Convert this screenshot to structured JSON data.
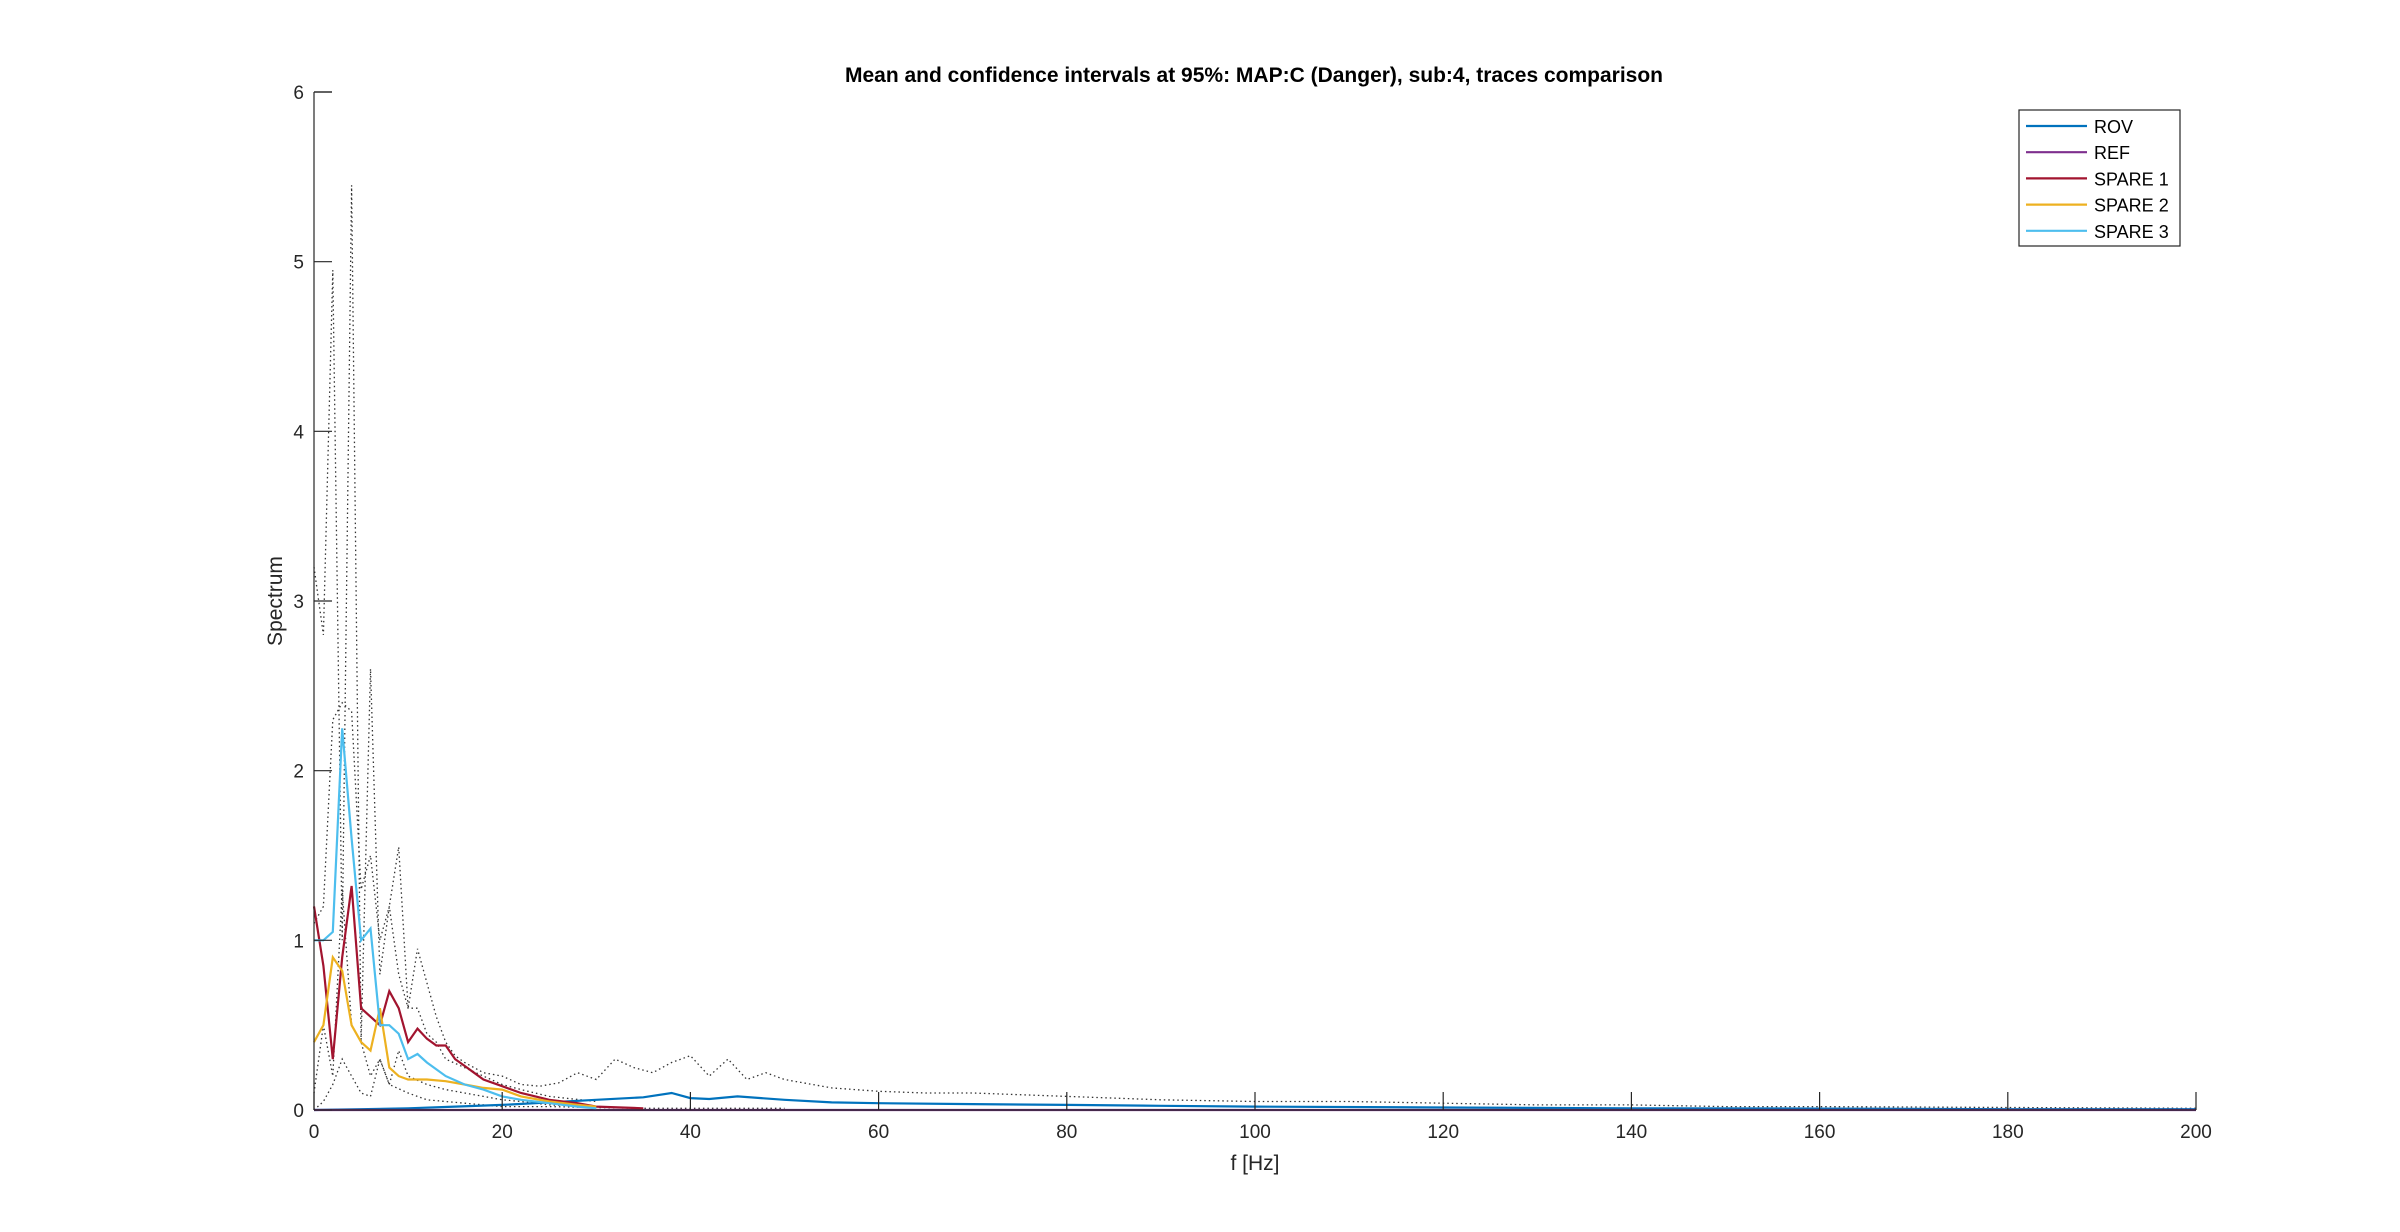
{
  "chart_data": {
    "type": "line",
    "title": "Mean and confidence intervals at 95%: MAP:C (Danger), sub:4, traces comparison",
    "xlabel": "f [Hz]",
    "ylabel": "Spectrum",
    "xlim": [
      0,
      200
    ],
    "ylim": [
      0,
      6
    ],
    "xticks": [
      0,
      20,
      40,
      60,
      80,
      100,
      120,
      140,
      160,
      180,
      200
    ],
    "yticks": [
      0,
      1,
      2,
      3,
      4,
      5,
      6
    ],
    "grid": false,
    "legend_position": "top-right",
    "series": [
      {
        "name": "ROV",
        "color": "#0072BD",
        "x": [
          0,
          5,
          10,
          15,
          20,
          25,
          30,
          35,
          38,
          40,
          42,
          45,
          50,
          55,
          60,
          70,
          80,
          90,
          100,
          120,
          140,
          160,
          180,
          200
        ],
        "y": [
          0.0,
          0.005,
          0.01,
          0.02,
          0.03,
          0.045,
          0.06,
          0.075,
          0.1,
          0.07,
          0.065,
          0.08,
          0.06,
          0.045,
          0.04,
          0.035,
          0.03,
          0.025,
          0.02,
          0.015,
          0.01,
          0.008,
          0.005,
          0.005
        ]
      },
      {
        "name": "REF",
        "color": "#7E2F8E",
        "x": [
          0,
          5,
          10,
          20,
          30,
          50,
          100,
          200
        ],
        "y": [
          0.0,
          0.0,
          0.0,
          0.0,
          0.0,
          0.0,
          0.0,
          0.0
        ]
      },
      {
        "name": "SPARE 1",
        "color": "#A2142F",
        "x": [
          0,
          1,
          2,
          3,
          4,
          5,
          6,
          7,
          8,
          9,
          10,
          11,
          12,
          13,
          14,
          15,
          16,
          17,
          18,
          20,
          22,
          25,
          28,
          30,
          35
        ],
        "y": [
          1.2,
          0.85,
          0.3,
          0.9,
          1.32,
          0.6,
          0.55,
          0.5,
          0.7,
          0.6,
          0.4,
          0.48,
          0.42,
          0.38,
          0.38,
          0.3,
          0.26,
          0.22,
          0.18,
          0.14,
          0.1,
          0.06,
          0.04,
          0.02,
          0.01
        ]
      },
      {
        "name": "SPARE 2",
        "color": "#EDB120",
        "x": [
          0,
          1,
          2,
          3,
          4,
          5,
          6,
          7,
          8,
          9,
          10,
          12,
          14,
          16,
          18,
          20,
          22,
          25,
          28,
          30
        ],
        "y": [
          0.4,
          0.5,
          0.9,
          0.82,
          0.5,
          0.4,
          0.35,
          0.6,
          0.25,
          0.2,
          0.18,
          0.18,
          0.17,
          0.15,
          0.13,
          0.12,
          0.08,
          0.05,
          0.03,
          0.02
        ]
      },
      {
        "name": "SPARE 3",
        "color": "#4DBEEE",
        "x": [
          0,
          1,
          2,
          3,
          4,
          5,
          6,
          7,
          8,
          9,
          10,
          11,
          12,
          14,
          16,
          18,
          20,
          22,
          25,
          28,
          30
        ],
        "y": [
          1.0,
          1.0,
          1.05,
          2.25,
          1.6,
          1.0,
          1.07,
          0.5,
          0.5,
          0.45,
          0.3,
          0.33,
          0.28,
          0.2,
          0.15,
          0.12,
          0.08,
          0.06,
          0.04,
          0.02,
          0.01
        ]
      }
    ],
    "confidence_bounds": [
      {
        "style": "dotted",
        "x": [
          0,
          1,
          2,
          3,
          4,
          5,
          6,
          7,
          8,
          9,
          10,
          11,
          12,
          13,
          14,
          15,
          16,
          18,
          20,
          22,
          24,
          26,
          28,
          30,
          32,
          34,
          36,
          38,
          40,
          42,
          44,
          46,
          48,
          50,
          55,
          60,
          65,
          70,
          80,
          90,
          100,
          110,
          120,
          130,
          140,
          150,
          160,
          180,
          200
        ],
        "y": [
          3.2,
          2.8,
          4.95,
          1.0,
          5.45,
          0.4,
          2.6,
          0.8,
          1.2,
          1.55,
          0.6,
          0.95,
          0.75,
          0.55,
          0.4,
          0.32,
          0.28,
          0.22,
          0.2,
          0.15,
          0.14,
          0.16,
          0.22,
          0.18,
          0.3,
          0.25,
          0.22,
          0.28,
          0.32,
          0.2,
          0.3,
          0.18,
          0.22,
          0.18,
          0.13,
          0.11,
          0.1,
          0.1,
          0.08,
          0.06,
          0.05,
          0.05,
          0.04,
          0.03,
          0.03,
          0.02,
          0.02,
          0.015,
          0.01
        ]
      },
      {
        "style": "dotted",
        "x": [
          0,
          1,
          2,
          3,
          4,
          5,
          6,
          7,
          8,
          9,
          10,
          11,
          12,
          13,
          14,
          16,
          18,
          20,
          22,
          25,
          30
        ],
        "y": [
          1.1,
          1.2,
          2.3,
          2.4,
          2.35,
          1.3,
          1.5,
          1.0,
          1.2,
          0.8,
          0.6,
          0.6,
          0.45,
          0.4,
          0.3,
          0.25,
          0.2,
          0.15,
          0.12,
          0.08,
          0.05
        ]
      },
      {
        "style": "dotted",
        "x": [
          0,
          1,
          2,
          3,
          4,
          5,
          6,
          7,
          8,
          9,
          10,
          12,
          14,
          16,
          18,
          20,
          22,
          25,
          30
        ],
        "y": [
          0.1,
          0.5,
          0.2,
          1.3,
          0.5,
          0.4,
          0.2,
          0.3,
          0.15,
          0.35,
          0.2,
          0.15,
          0.12,
          0.1,
          0.08,
          0.06,
          0.05,
          0.03,
          0.02
        ]
      },
      {
        "style": "dotted",
        "x": [
          0,
          1,
          2,
          3,
          4,
          5,
          6,
          7,
          8,
          10,
          12,
          14,
          16,
          18,
          20,
          25,
          30,
          35,
          40,
          45,
          50
        ],
        "y": [
          0.0,
          0.05,
          0.15,
          0.3,
          0.2,
          0.1,
          0.08,
          0.3,
          0.15,
          0.1,
          0.06,
          0.05,
          0.04,
          0.03,
          0.02,
          0.02,
          0.015,
          0.01,
          0.01,
          0.01,
          0.01
        ]
      }
    ]
  }
}
